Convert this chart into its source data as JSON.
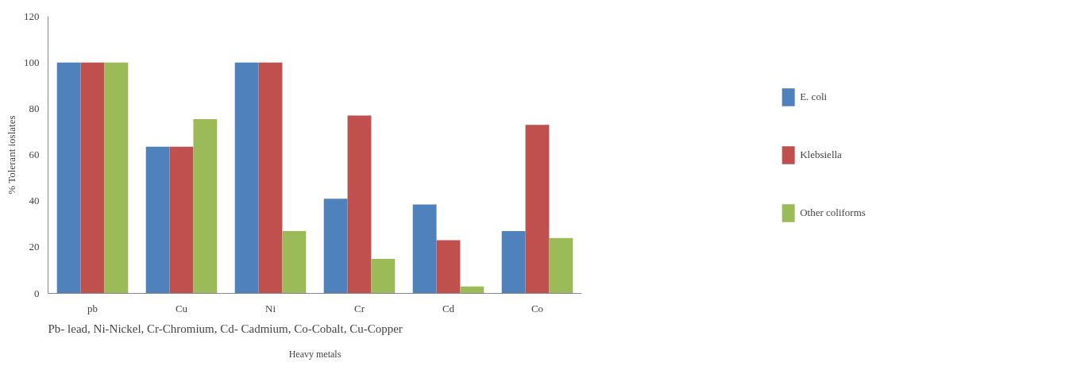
{
  "chart_data": {
    "type": "bar",
    "xlabel": "Heavy metals",
    "ylabel": "% Tolerant ioslates",
    "categories": [
      "pb",
      "Cu",
      "Ni",
      "Cr",
      "Cd",
      "Co"
    ],
    "series": [
      {
        "name": "E. coli",
        "color": "#4f81bd",
        "values": [
          100,
          63.5,
          100,
          41,
          38.5,
          27
        ]
      },
      {
        "name": "Klebsiella",
        "color": "#c0504d",
        "values": [
          100,
          63.5,
          100,
          77,
          23,
          73
        ]
      },
      {
        "name": "Other coliforms",
        "color": "#9bbb59",
        "values": [
          100,
          75.5,
          27,
          15,
          3,
          24
        ]
      }
    ],
    "ylim": [
      0,
      120
    ],
    "yticks": [
      0,
      20,
      40,
      60,
      80,
      100,
      120
    ],
    "grid": false,
    "legend": "right",
    "annotations": [
      "Pb- lead, Ni-Nickel, Cr-Chromium, Cd- Cadmium, Co-Cobalt, Cu-Copper"
    ]
  }
}
